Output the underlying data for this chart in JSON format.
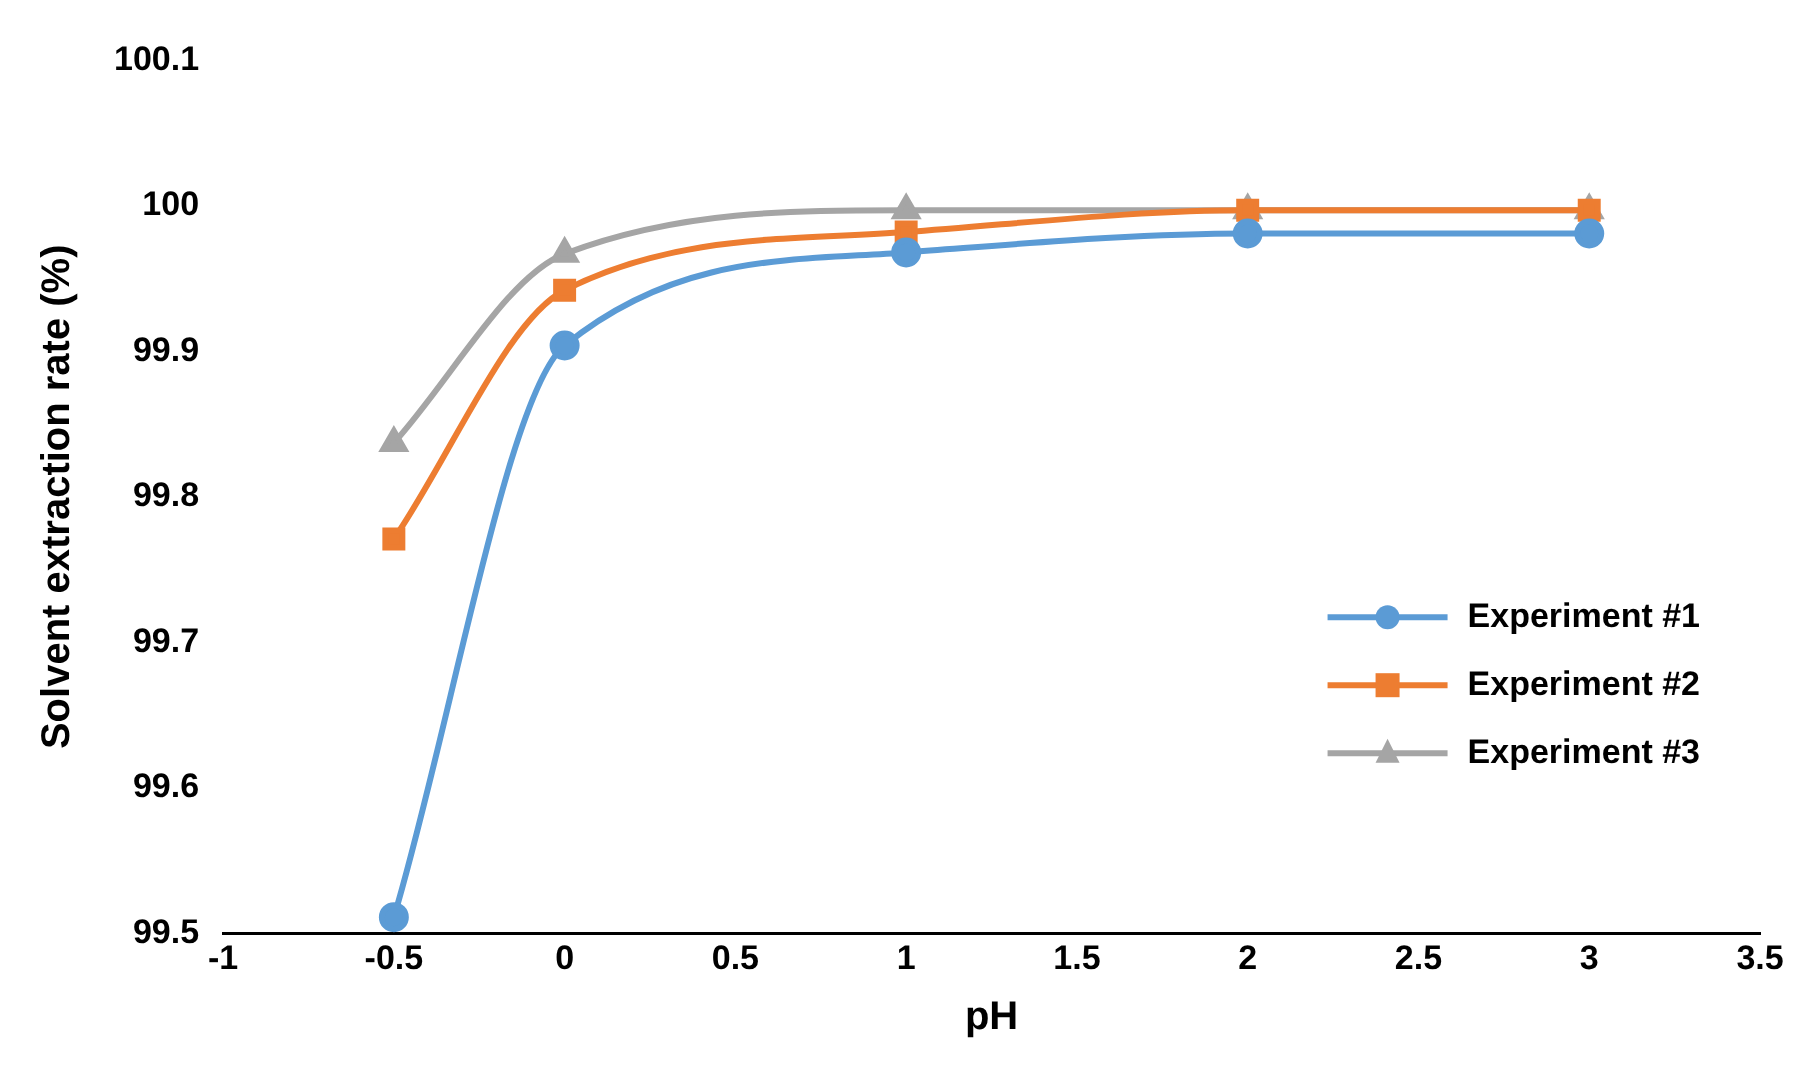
{
  "chart_data": {
    "type": "line",
    "xlabel": "pH",
    "ylabel": "Solvent extraction rate (%)",
    "x": [
      -0.5,
      0,
      1,
      2,
      3
    ],
    "xlim": [
      -1,
      3.5
    ],
    "xticks": [
      -1,
      -0.5,
      0,
      0.5,
      1,
      1.5,
      2,
      2.5,
      3,
      3.5
    ],
    "ylim": [
      99.5,
      100.1
    ],
    "yticks": [
      99.5,
      99.6,
      99.7,
      99.8,
      99.9,
      100,
      100.1
    ],
    "grid": false,
    "legend": "bottom right",
    "series": [
      {
        "name": "Experiment #1",
        "color": "#5b9bd5",
        "marker": "circle",
        "values": [
          99.511,
          99.904,
          99.968,
          99.981,
          99.981
        ]
      },
      {
        "name": "Experiment #2",
        "color": "#ed7d31",
        "marker": "square",
        "values": [
          99.771,
          99.942,
          99.982,
          99.997,
          99.997
        ]
      },
      {
        "name": "Experiment #3",
        "color": "#a5a5a5",
        "marker": "triangle",
        "values": [
          99.837,
          99.967,
          99.997,
          99.997,
          99.997
        ]
      }
    ]
  }
}
